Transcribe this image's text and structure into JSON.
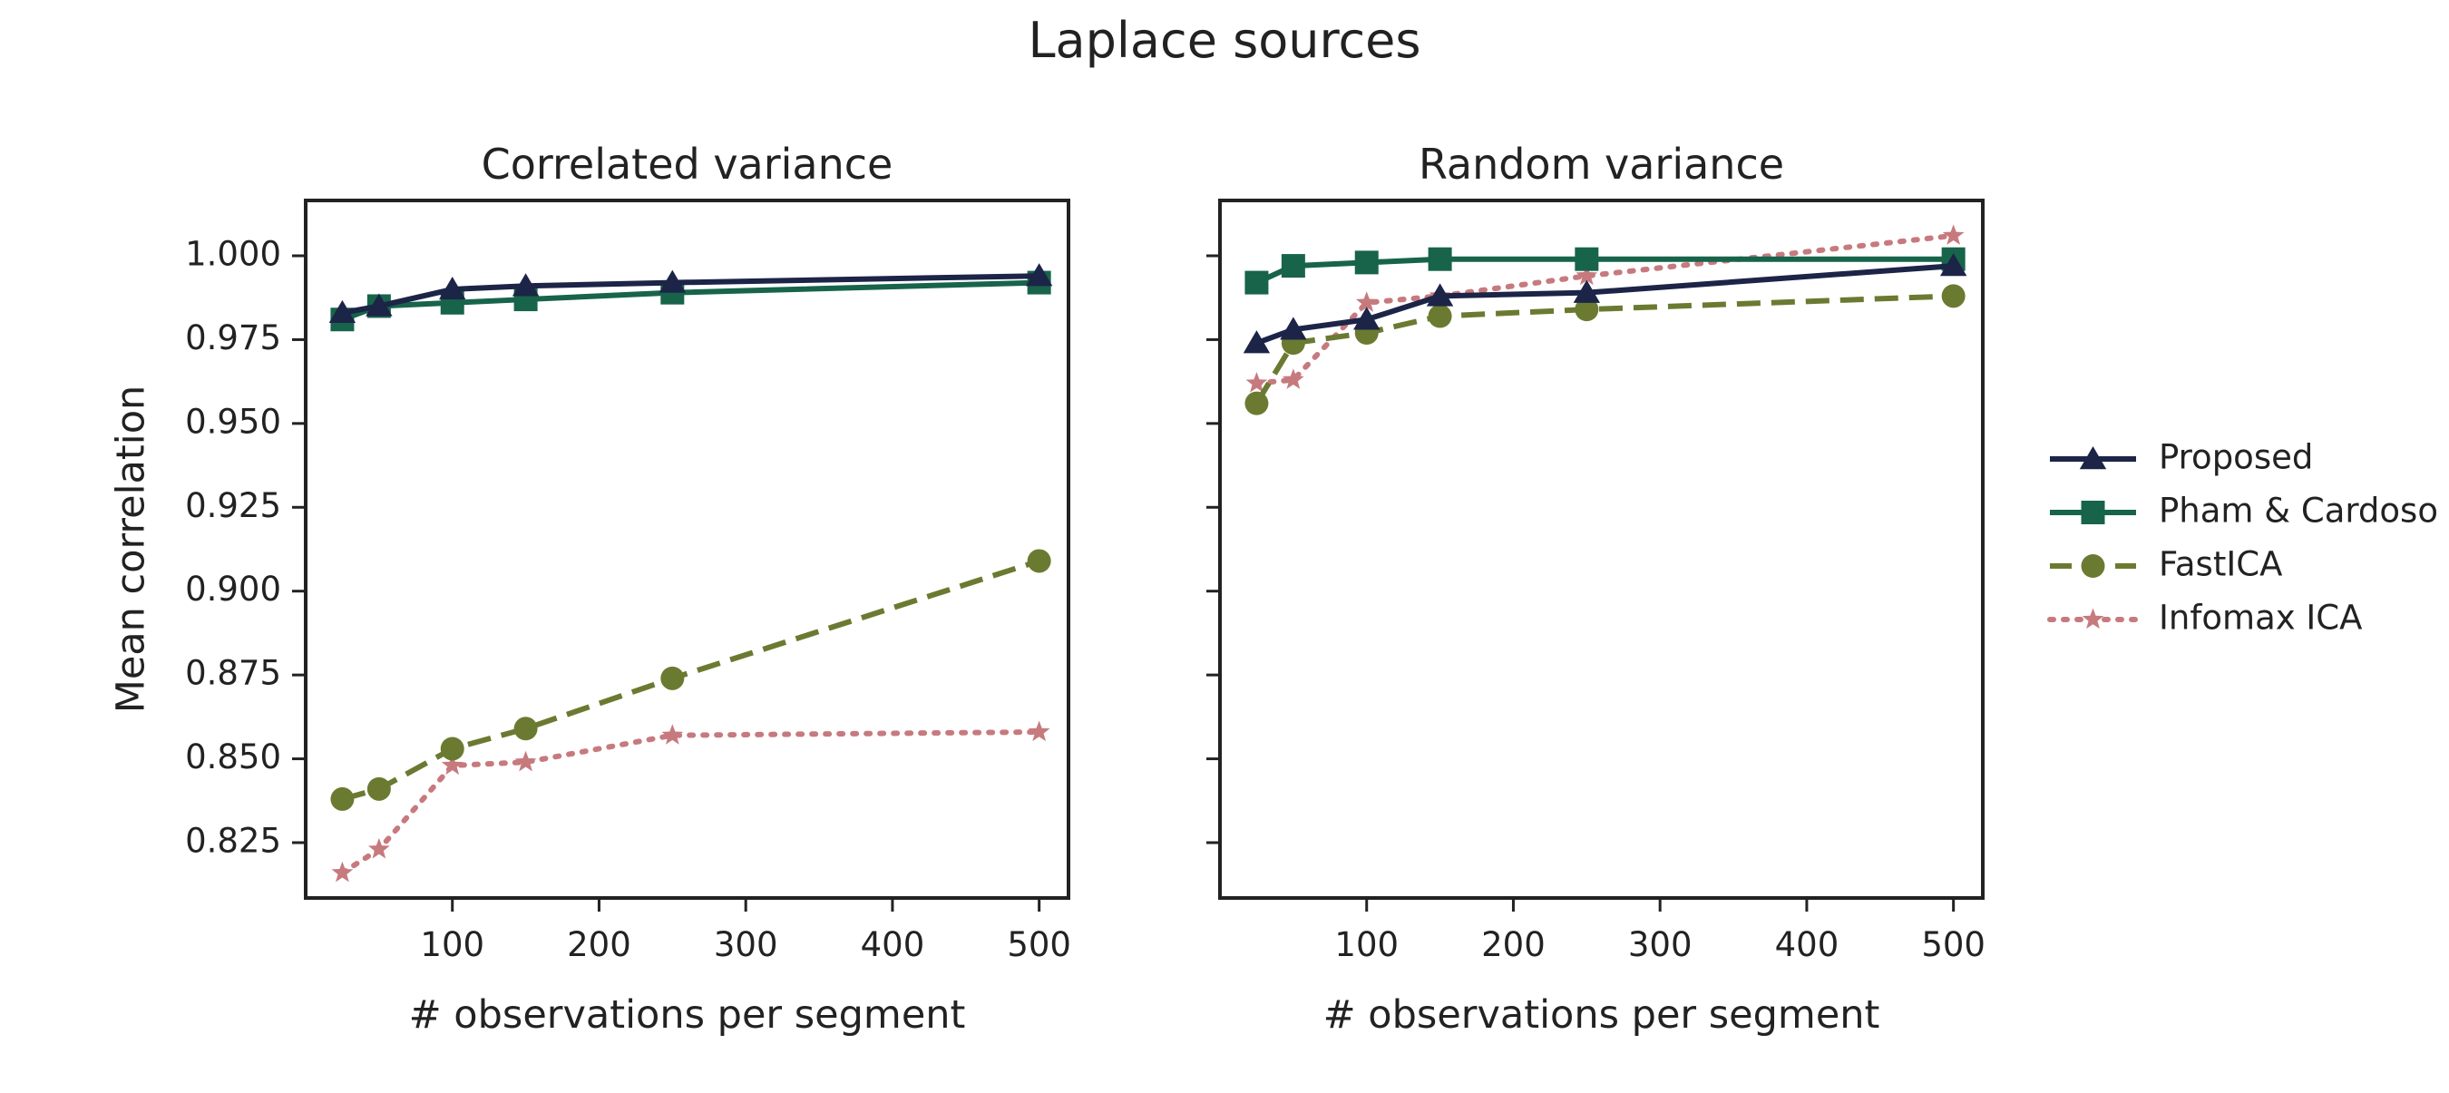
{
  "figure": {
    "suptitle": "Laplace sources"
  },
  "chart_data": [
    {
      "type": "line",
      "title": "Correlated variance",
      "xlabel": "# observations per segment",
      "ylabel": "Mean correlation",
      "xlim": [
        0,
        520
      ],
      "ylim": [
        0.8085,
        1.0165
      ],
      "xticks": [
        100,
        200,
        300,
        400,
        500
      ],
      "yticks": [
        0.825,
        0.85,
        0.875,
        0.9,
        0.925,
        0.95,
        0.975,
        1.0
      ],
      "ytick_labels": [
        "0.825",
        "0.850",
        "0.875",
        "0.900",
        "0.925",
        "0.950",
        "0.975",
        "1.000"
      ],
      "grid": false,
      "x": [
        25,
        50,
        100,
        150,
        250,
        500
      ],
      "series": [
        {
          "name": "Proposed",
          "values": [
            0.983,
            0.985,
            0.99,
            0.991,
            0.992,
            0.994
          ]
        },
        {
          "name": "Pham & Cardoso",
          "values": [
            0.981,
            0.985,
            0.986,
            0.987,
            0.989,
            0.992
          ]
        },
        {
          "name": "FastICA",
          "values": [
            0.838,
            0.841,
            0.853,
            0.859,
            0.874,
            0.909
          ]
        },
        {
          "name": "Infomax ICA",
          "values": [
            0.816,
            0.823,
            0.848,
            0.849,
            0.857,
            0.858
          ]
        }
      ]
    },
    {
      "type": "line",
      "title": "Random variance",
      "xlabel": "# observations per segment",
      "ylabel": "",
      "xlim": [
        0,
        520
      ],
      "ylim": [
        0.8085,
        1.0165
      ],
      "xticks": [
        100,
        200,
        300,
        400,
        500
      ],
      "grid": false,
      "shared_y": true,
      "x": [
        25,
        50,
        100,
        150,
        250,
        500
      ],
      "series": [
        {
          "name": "Proposed",
          "values": [
            0.974,
            0.978,
            0.981,
            0.988,
            0.989,
            0.997
          ]
        },
        {
          "name": "Pham & Cardoso",
          "values": [
            0.992,
            0.997,
            0.998,
            0.999,
            0.999,
            0.999
          ]
        },
        {
          "name": "FastICA",
          "values": [
            0.956,
            0.974,
            0.977,
            0.982,
            0.984,
            0.988
          ]
        },
        {
          "name": "Infomax ICA",
          "values": [
            0.962,
            0.963,
            0.986,
            0.988,
            0.994,
            1.006
          ]
        }
      ]
    }
  ],
  "legend": {
    "placement": "right",
    "entries": [
      {
        "label": "Proposed",
        "color": "#1c2447",
        "marker": "triangle",
        "line": "solid"
      },
      {
        "label": "Pham & Cardoso",
        "color": "#17644a",
        "marker": "square",
        "line": "solid"
      },
      {
        "label": "FastICA",
        "color": "#6b7a31",
        "marker": "circle",
        "line": "dashed"
      },
      {
        "label": "Infomax ICA",
        "color": "#c77a7e",
        "marker": "star",
        "line": "dotted"
      }
    ]
  }
}
